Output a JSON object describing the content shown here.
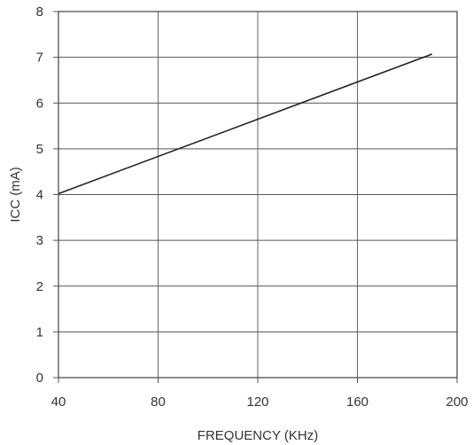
{
  "chart_data": {
    "type": "line",
    "title": "",
    "xlabel": "FREQUENCY (KHz)",
    "ylabel": "ICC (mA)",
    "xlim": [
      40,
      200
    ],
    "ylim": [
      0,
      8
    ],
    "x_ticks": [
      "40",
      "80",
      "120",
      "160",
      "200"
    ],
    "y_ticks": [
      "0",
      "1",
      "2",
      "3",
      "4",
      "5",
      "6",
      "7",
      "8"
    ],
    "grid": true,
    "series": [
      {
        "x": [
          40,
          190
        ],
        "y": [
          4.02,
          7.07
        ]
      }
    ],
    "colors": {
      "line": "#222222",
      "grid": "#555555",
      "axis": "#444444"
    }
  }
}
